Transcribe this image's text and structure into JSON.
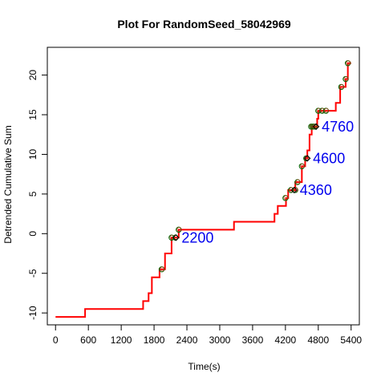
{
  "chart_data": {
    "type": "line",
    "title": "Plot For RandomSeed_58042969",
    "xlabel": "Time(s)",
    "ylabel": "Detrended Cumulative Sum",
    "xlim": [
      -150,
      5550
    ],
    "ylim": [
      -11.5,
      23.5
    ],
    "xticks": [
      0,
      600,
      1200,
      1800,
      2400,
      3000,
      3600,
      4200,
      4800,
      5400
    ],
    "yticks": [
      -10,
      -5,
      0,
      5,
      10,
      15,
      20
    ],
    "line_color": "#ff0000",
    "marker_edge_colors": [
      "#006400",
      "#8b4513"
    ],
    "annotation_color": "#0000ee",
    "series": [
      {
        "style": "step",
        "x": [
          0,
          540,
          1600,
          1650,
          1700,
          1760,
          1800,
          1900,
          1940,
          2000,
          2120,
          2150,
          2200,
          2250,
          3260,
          4000,
          4060,
          4100,
          4210,
          4250,
          4300,
          4380,
          4420,
          4500,
          4530,
          4560,
          4590,
          4600,
          4640,
          4680,
          4700,
          4720,
          4780,
          4800,
          4840,
          4900,
          4960,
          5000,
          5060,
          5120,
          5200,
          5260,
          5300,
          5340,
          5400
        ],
        "y": [
          -10.5,
          -9.5,
          -8.5,
          -8.5,
          -7.5,
          -5.5,
          -5.5,
          -4.5,
          -4.5,
          -2.5,
          -0.5,
          -0.5,
          -0.5,
          0.5,
          1.5,
          2.5,
          3.5,
          3.5,
          4.5,
          5.5,
          5.5,
          6.5,
          6.5,
          8.5,
          8.5,
          9.5,
          9.5,
          10.5,
          12.5,
          13.5,
          13.5,
          13.5,
          14.5,
          15.5,
          15.5,
          15.5,
          15.5,
          15.5,
          15.5,
          16.5,
          18.5,
          18.5,
          19.5,
          21.5,
          21.5
        ]
      }
    ],
    "markers": {
      "x": [
        1940,
        2120,
        2190,
        2250,
        4200,
        4300,
        4380,
        4420,
        4500,
        4580,
        4670,
        4700,
        4730,
        4800,
        4870,
        4940,
        5220,
        5300,
        5340
      ],
      "y": [
        -4.5,
        -0.5,
        -0.5,
        0.5,
        4.5,
        5.5,
        5.5,
        6.5,
        8.5,
        9.5,
        13.5,
        13.5,
        13.5,
        15.5,
        15.5,
        15.5,
        18.5,
        19.5,
        21.5
      ]
    },
    "annotations": [
      {
        "text": "2200",
        "x": 2200,
        "y": -0.5
      },
      {
        "text": "4360",
        "x": 4360,
        "y": 5.5
      },
      {
        "text": "4600",
        "x": 4600,
        "y": 9.5
      },
      {
        "text": "4760",
        "x": 4760,
        "y": 13.5
      }
    ]
  }
}
